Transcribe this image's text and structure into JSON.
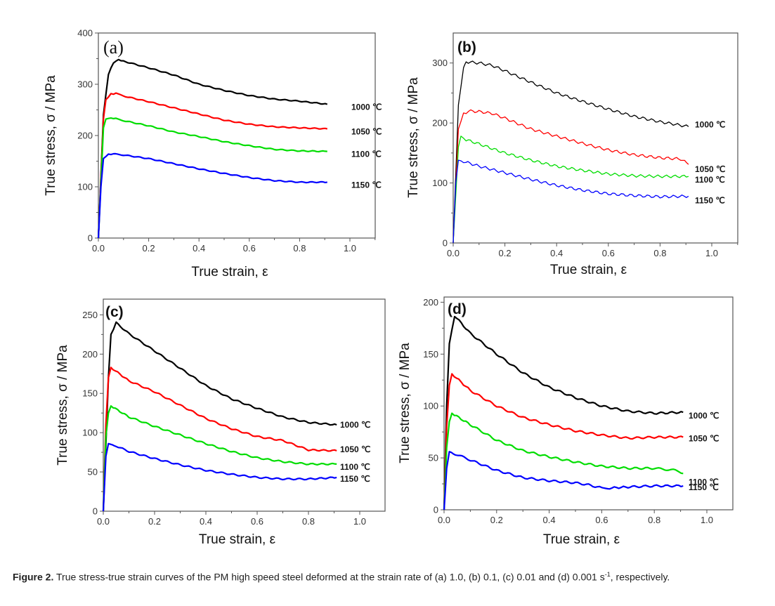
{
  "figure_caption": {
    "label": "Figure 2.",
    "text_before_sup": " True stress-true strain curves of the PM high speed steel deformed at the strain rate of (a) 1.0, (b) 0.1, (c) 0.01 and (d) 0.001 s",
    "sup": "-1",
    "text_after_sup": ", respectively."
  },
  "chart_data": [
    {
      "panel": "(a)",
      "type": "line",
      "strain_rate": "1.0 s-1",
      "xlabel": "True strain, ε",
      "ylabel": "True stress, σ / MPa",
      "xlim": [
        0.0,
        1.1
      ],
      "ylim": [
        0,
        400
      ],
      "xticks": [
        "0.0",
        "0.2",
        "0.4",
        "0.6",
        "0.8",
        "1.0"
      ],
      "yticks": [
        "0",
        "100",
        "200",
        "300",
        "400"
      ],
      "xtick_values": [
        0.0,
        0.2,
        0.4,
        0.6,
        0.8,
        1.0
      ],
      "ytick_values": [
        0,
        100,
        200,
        300,
        400
      ],
      "series": [
        {
          "name": "1000 ℃",
          "color": "#000000",
          "x": [
            0,
            0.02,
            0.04,
            0.06,
            0.08,
            0.1,
            0.2,
            0.3,
            0.4,
            0.5,
            0.6,
            0.7,
            0.8,
            0.91
          ],
          "y": [
            0,
            240,
            320,
            342,
            348,
            345,
            332,
            318,
            300,
            288,
            278,
            271,
            267,
            261
          ]
        },
        {
          "name": "1050 ℃",
          "color": "#ff0000",
          "x": [
            0,
            0.02,
            0.03,
            0.05,
            0.07,
            0.1,
            0.2,
            0.3,
            0.4,
            0.5,
            0.6,
            0.7,
            0.8,
            0.91
          ],
          "y": [
            0,
            232,
            270,
            281,
            282,
            277,
            266,
            254,
            242,
            230,
            222,
            217,
            215,
            213
          ]
        },
        {
          "name": "1100 ℃",
          "color": "#00dd00",
          "x": [
            0,
            0.02,
            0.03,
            0.05,
            0.07,
            0.1,
            0.2,
            0.3,
            0.4,
            0.5,
            0.6,
            0.7,
            0.8,
            0.91
          ],
          "y": [
            0,
            215,
            232,
            234,
            233,
            229,
            219,
            207,
            198,
            188,
            180,
            173,
            170,
            169
          ]
        },
        {
          "name": "1150 ℃",
          "color": "#0000ff",
          "x": [
            0,
            0.01,
            0.02,
            0.04,
            0.06,
            0.1,
            0.2,
            0.3,
            0.4,
            0.5,
            0.6,
            0.7,
            0.8,
            0.91
          ],
          "y": [
            0,
            100,
            155,
            163,
            164,
            162,
            155,
            145,
            135,
            126,
            118,
            112,
            109,
            109
          ]
        }
      ]
    },
    {
      "panel": "(b)",
      "type": "line",
      "strain_rate": "0.1 s-1",
      "xlabel": "True strain, ε",
      "ylabel": "True stress, σ / MPa",
      "xlim": [
        0.0,
        1.1
      ],
      "ylim": [
        0,
        350
      ],
      "xticks": [
        "0.0",
        "0.2",
        "0.4",
        "0.6",
        "0.8",
        "1.0"
      ],
      "yticks": [
        "0",
        "100",
        "200",
        "300"
      ],
      "xtick_values": [
        0.0,
        0.2,
        0.4,
        0.6,
        0.8,
        1.0
      ],
      "ytick_values": [
        0,
        100,
        200,
        300
      ],
      "series": [
        {
          "name": "1000 ℃",
          "color": "#000000",
          "x": [
            0,
            0.02,
            0.04,
            0.05,
            0.1,
            0.15,
            0.2,
            0.3,
            0.4,
            0.5,
            0.6,
            0.7,
            0.8,
            0.91
          ],
          "y": [
            0,
            230,
            290,
            302,
            300,
            296,
            287,
            268,
            250,
            236,
            223,
            211,
            202,
            194
          ]
        },
        {
          "name": "1050 ℃",
          "color": "#ff0000",
          "x": [
            0,
            0.02,
            0.04,
            0.06,
            0.1,
            0.15,
            0.2,
            0.3,
            0.4,
            0.5,
            0.6,
            0.7,
            0.8,
            0.88,
            0.91
          ],
          "y": [
            0,
            190,
            215,
            220,
            219,
            216,
            208,
            190,
            178,
            166,
            155,
            147,
            142,
            140,
            131
          ]
        },
        {
          "name": "1100 ℃",
          "color": "#00dd00",
          "x": [
            0,
            0.02,
            0.03,
            0.05,
            0.1,
            0.2,
            0.3,
            0.4,
            0.5,
            0.6,
            0.7,
            0.8,
            0.91
          ],
          "y": [
            0,
            160,
            178,
            172,
            165,
            150,
            138,
            128,
            121,
            115,
            112,
            111,
            111
          ]
        },
        {
          "name": "1150 ℃",
          "color": "#0000ff",
          "x": [
            0,
            0.01,
            0.02,
            0.04,
            0.1,
            0.2,
            0.3,
            0.4,
            0.5,
            0.6,
            0.7,
            0.8,
            0.91
          ],
          "y": [
            0,
            100,
            138,
            136,
            128,
            117,
            106,
            96,
            88,
            82,
            79,
            77,
            78
          ]
        }
      ]
    },
    {
      "panel": "(c)",
      "type": "line",
      "strain_rate": "0.01 s-1",
      "xlabel": "True strain, ε",
      "ylabel": "True stress, σ / MPa",
      "xlim": [
        0.0,
        1.1
      ],
      "ylim": [
        0,
        270
      ],
      "xticks": [
        "0.0",
        "0.2",
        "0.4",
        "0.6",
        "0.8",
        "1.0"
      ],
      "yticks": [
        "0",
        "50",
        "100",
        "150",
        "200",
        "250"
      ],
      "xtick_values": [
        0.0,
        0.2,
        0.4,
        0.6,
        0.8,
        1.0
      ],
      "ytick_values": [
        0,
        50,
        100,
        150,
        200,
        250
      ],
      "series": [
        {
          "name": "1000 ℃",
          "color": "#000000",
          "x": [
            0,
            0.02,
            0.03,
            0.05,
            0.1,
            0.2,
            0.3,
            0.4,
            0.5,
            0.6,
            0.7,
            0.8,
            0.91
          ],
          "y": [
            0,
            170,
            225,
            240,
            226,
            204,
            182,
            160,
            143,
            131,
            120,
            113,
            110
          ]
        },
        {
          "name": "1050 ℃",
          "color": "#ff0000",
          "x": [
            0,
            0.01,
            0.02,
            0.03,
            0.1,
            0.2,
            0.3,
            0.4,
            0.5,
            0.6,
            0.7,
            0.75,
            0.8,
            0.91
          ],
          "y": [
            0,
            110,
            170,
            183,
            166,
            152,
            135,
            118,
            105,
            95,
            90,
            84,
            78,
            77
          ]
        },
        {
          "name": "1100 ℃",
          "color": "#00dd00",
          "x": [
            0,
            0.01,
            0.02,
            0.03,
            0.1,
            0.2,
            0.3,
            0.4,
            0.5,
            0.6,
            0.7,
            0.8,
            0.91
          ],
          "y": [
            0,
            95,
            125,
            134,
            120,
            108,
            97,
            86,
            76,
            68,
            63,
            60,
            60
          ]
        },
        {
          "name": "1150 ℃",
          "color": "#0000ff",
          "x": [
            0,
            0.01,
            0.02,
            0.05,
            0.1,
            0.2,
            0.3,
            0.4,
            0.5,
            0.6,
            0.7,
            0.8,
            0.91
          ],
          "y": [
            0,
            70,
            86,
            83,
            76,
            67,
            59,
            52,
            47,
            43,
            41,
            41,
            43
          ]
        }
      ]
    },
    {
      "panel": "(d)",
      "type": "line",
      "strain_rate": "0.001 s-1",
      "xlabel": "True strain, ε",
      "ylabel": "True stress, σ / MPa",
      "xlim": [
        0.0,
        1.1
      ],
      "ylim": [
        0,
        205
      ],
      "xticks": [
        "0.0",
        "0.2",
        "0.4",
        "0.6",
        "0.8",
        "1.0"
      ],
      "yticks": [
        "0",
        "50",
        "100",
        "150",
        "200"
      ],
      "xtick_values": [
        0.0,
        0.2,
        0.4,
        0.6,
        0.8,
        1.0
      ],
      "ytick_values": [
        0,
        50,
        100,
        150,
        200
      ],
      "series": [
        {
          "name": "1000 ℃",
          "color": "#000000",
          "x": [
            0,
            0.01,
            0.02,
            0.04,
            0.1,
            0.2,
            0.3,
            0.4,
            0.5,
            0.6,
            0.7,
            0.8,
            0.91
          ],
          "y": [
            0,
            100,
            160,
            187,
            170,
            150,
            132,
            118,
            108,
            100,
            95,
            93,
            94
          ]
        },
        {
          "name": "1050 ℃",
          "color": "#ff0000",
          "x": [
            0,
            0.01,
            0.02,
            0.03,
            0.1,
            0.2,
            0.3,
            0.4,
            0.5,
            0.6,
            0.7,
            0.8,
            0.91
          ],
          "y": [
            0,
            80,
            120,
            131,
            115,
            100,
            89,
            82,
            76,
            72,
            69,
            70,
            70
          ]
        },
        {
          "name": "1100 ℃",
          "color": "#00dd00",
          "x": [
            0,
            0.01,
            0.02,
            0.03,
            0.1,
            0.2,
            0.3,
            0.4,
            0.5,
            0.6,
            0.7,
            0.8,
            0.88,
            0.91
          ],
          "y": [
            0,
            60,
            85,
            93,
            82,
            67,
            57,
            51,
            46,
            42,
            40,
            40,
            38,
            35
          ]
        },
        {
          "name": "1150 ℃",
          "color": "#0000ff",
          "x": [
            0,
            0.01,
            0.02,
            0.1,
            0.2,
            0.3,
            0.4,
            0.5,
            0.55,
            0.6,
            0.63,
            0.7,
            0.8,
            0.91
          ],
          "y": [
            0,
            40,
            56,
            48,
            38,
            31,
            28,
            26,
            24,
            21,
            21,
            22,
            23,
            23
          ]
        }
      ]
    }
  ]
}
